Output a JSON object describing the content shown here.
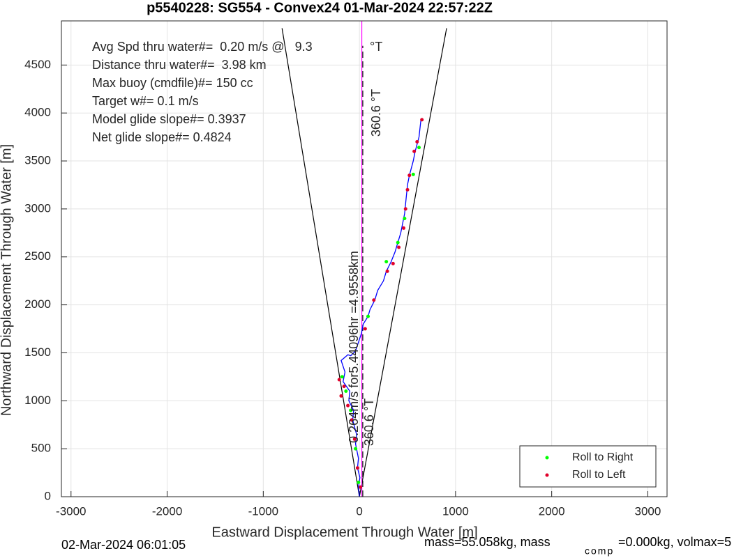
{
  "chart_data": {
    "type": "line",
    "title": "p5540228: SG554 - Convex24 01-Mar-2024 22:57:22Z",
    "xlabel": "Eastward Displacement Through Water [m]",
    "ylabel": "Northward Displacement Through Water [m]",
    "xlim": [
      -3100,
      3200
    ],
    "ylim": [
      0,
      4960
    ],
    "xticks": [
      -3000,
      -2000,
      -1000,
      0,
      1000,
      2000,
      3000
    ],
    "yticks": [
      0,
      500,
      1000,
      1500,
      2000,
      2500,
      3000,
      3500,
      4000,
      4500
    ],
    "grid": true,
    "legend_position": "lower right",
    "annotations": [
      "Avg Spd thru water#=  0.20 m/s @   9.3",
      "°T",
      "Distance thru water#=  3.98 km",
      "Max buoy (cmdfile)#= 150 cc",
      "Target w#= 0.1 m/s",
      "Model glide slope#= 0.3937",
      "Net glide slope#= 0.4824",
      "360.6 °T",
      "0.264m/s for5.44096hr =4.9558km",
      "360.6 °T"
    ],
    "footer": [
      "02-Mar-2024 06:01:05",
      "mass=55.058kg, mass",
      "comp",
      "=0.000kg, volmax=5"
    ],
    "series": [
      {
        "style": "line",
        "color": "#000000",
        "x": [
          0,
          -805
        ],
        "values": [
          0,
          4884
        ]
      },
      {
        "style": "line",
        "color": "#000000",
        "x": [
          0,
          907
        ],
        "values": [
          0,
          4884
        ]
      },
      {
        "style": "line",
        "color": "#ff00ff",
        "x": [
          25,
          25
        ],
        "values": [
          0,
          4960
        ]
      },
      {
        "style": "dashed",
        "color": "#000000",
        "x": [
          35,
          35
        ],
        "values": [
          0,
          4700
        ]
      },
      {
        "style": "line",
        "color": "#0000ff",
        "x": [
          0,
          -10,
          5,
          -20,
          -10,
          -40,
          -30,
          -70,
          -60,
          -110,
          -100,
          -170,
          -150,
          -190,
          -120,
          -90,
          -40,
          20,
          40,
          90,
          110,
          160,
          190,
          250,
          280,
          330,
          370,
          400,
          430,
          450,
          470,
          480,
          490,
          500,
          520,
          560,
          580,
          620,
          640
        ],
        "values": [
          0,
          100,
          200,
          300,
          400,
          550,
          650,
          800,
          900,
          1000,
          1100,
          1200,
          1300,
          1420,
          1480,
          1470,
          1520,
          1700,
          1800,
          1880,
          1950,
          2050,
          2150,
          2250,
          2350,
          2450,
          2550,
          2650,
          2750,
          2850,
          2950,
          3050,
          3150,
          3250,
          3350,
          3500,
          3600,
          3750,
          3930
        ]
      },
      {
        "style": "dots",
        "name": "Roll to Right",
        "color": "#00ff00",
        "x": [
          -180,
          -140,
          -90,
          -40,
          -10,
          90,
          280,
          400,
          470,
          560,
          620
        ],
        "values": [
          1250,
          1100,
          900,
          500,
          150,
          1880,
          2450,
          2650,
          2900,
          3360,
          3640
        ]
      },
      {
        "style": "dots",
        "name": "Roll to Left",
        "color": "#e0002a",
        "x": [
          -210,
          -190,
          -160,
          -120,
          -80,
          -50,
          -20,
          10,
          60,
          150,
          290,
          350,
          410,
          460,
          480,
          500,
          520,
          570,
          600,
          650
        ],
        "values": [
          1220,
          1050,
          1150,
          950,
          800,
          600,
          300,
          100,
          1750,
          2050,
          2350,
          2430,
          2600,
          2800,
          3000,
          3200,
          3350,
          3600,
          3700,
          3930
        ]
      }
    ]
  }
}
